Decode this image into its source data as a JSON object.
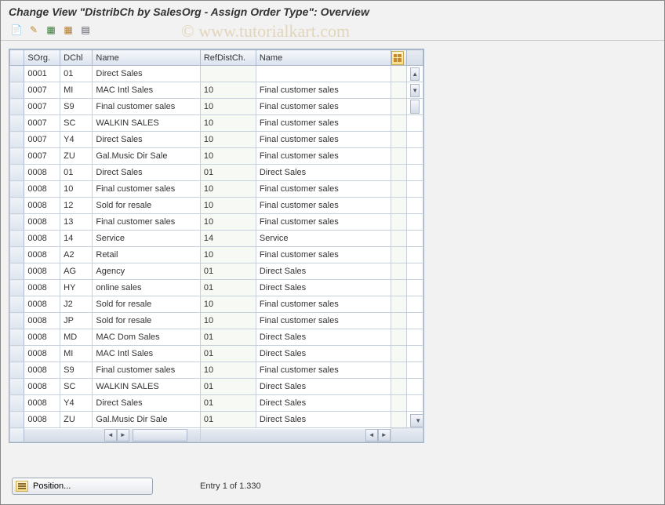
{
  "page": {
    "title": "Change View \"DistribCh by SalesOrg - Assign Order Type\": Overview",
    "watermark": "© www.tutorialkart.com"
  },
  "toolbar": {
    "items": [
      {
        "name": "other-view-icon",
        "glyph": "📄",
        "color": "#666"
      },
      {
        "name": "change-icon",
        "glyph": "✎",
        "color": "#c08a2a"
      },
      {
        "name": "new-entries-icon",
        "glyph": "▦",
        "color": "#3a7a3a"
      },
      {
        "name": "copy-icon",
        "glyph": "▦",
        "color": "#b07a2a"
      },
      {
        "name": "delete-icon",
        "glyph": "▤",
        "color": "#556"
      }
    ]
  },
  "table": {
    "columns": [
      "SOrg.",
      "DChl",
      "Name",
      "RefDistCh.",
      "Name"
    ],
    "rows": [
      {
        "sorg": "0001",
        "dchl": "01",
        "name1": "Direct Sales",
        "ref": "",
        "name2": ""
      },
      {
        "sorg": "0007",
        "dchl": "MI",
        "name1": "MAC Intl Sales",
        "ref": "10",
        "name2": "Final customer sales"
      },
      {
        "sorg": "0007",
        "dchl": "S9",
        "name1": "Final customer sales",
        "ref": "10",
        "name2": "Final customer sales"
      },
      {
        "sorg": "0007",
        "dchl": "SC",
        "name1": "WALKIN SALES",
        "ref": "10",
        "name2": "Final customer sales"
      },
      {
        "sorg": "0007",
        "dchl": "Y4",
        "name1": "Direct Sales",
        "ref": "10",
        "name2": "Final customer sales"
      },
      {
        "sorg": "0007",
        "dchl": "ZU",
        "name1": "Gal.Music Dir Sale",
        "ref": "10",
        "name2": "Final customer sales"
      },
      {
        "sorg": "0008",
        "dchl": "01",
        "name1": "Direct Sales",
        "ref": "01",
        "name2": "Direct Sales"
      },
      {
        "sorg": "0008",
        "dchl": "10",
        "name1": "Final customer sales",
        "ref": "10",
        "name2": "Final customer sales"
      },
      {
        "sorg": "0008",
        "dchl": "12",
        "name1": "Sold for resale",
        "ref": "10",
        "name2": "Final customer sales"
      },
      {
        "sorg": "0008",
        "dchl": "13",
        "name1": "Final customer sales",
        "ref": "10",
        "name2": "Final customer sales"
      },
      {
        "sorg": "0008",
        "dchl": "14",
        "name1": "Service",
        "ref": "14",
        "name2": "Service"
      },
      {
        "sorg": "0008",
        "dchl": "A2",
        "name1": "Retail",
        "ref": "10",
        "name2": "Final customer sales"
      },
      {
        "sorg": "0008",
        "dchl": "AG",
        "name1": "Agency",
        "ref": "01",
        "name2": "Direct Sales"
      },
      {
        "sorg": "0008",
        "dchl": "HY",
        "name1": "online sales",
        "ref": "01",
        "name2": "Direct Sales"
      },
      {
        "sorg": "0008",
        "dchl": "J2",
        "name1": "Sold for resale",
        "ref": "10",
        "name2": "Final customer sales"
      },
      {
        "sorg": "0008",
        "dchl": "JP",
        "name1": "Sold for resale",
        "ref": "10",
        "name2": "Final customer sales"
      },
      {
        "sorg": "0008",
        "dchl": "MD",
        "name1": "MAC Dom Sales",
        "ref": "01",
        "name2": "Direct Sales"
      },
      {
        "sorg": "0008",
        "dchl": "MI",
        "name1": "MAC Intl Sales",
        "ref": "01",
        "name2": "Direct Sales"
      },
      {
        "sorg": "0008",
        "dchl": "S9",
        "name1": "Final customer sales",
        "ref": "10",
        "name2": "Final customer sales"
      },
      {
        "sorg": "0008",
        "dchl": "SC",
        "name1": "WALKIN SALES",
        "ref": "01",
        "name2": "Direct Sales"
      },
      {
        "sorg": "0008",
        "dchl": "Y4",
        "name1": "Direct Sales",
        "ref": "01",
        "name2": "Direct Sales"
      },
      {
        "sorg": "0008",
        "dchl": "ZU",
        "name1": "Gal.Music Dir Sale",
        "ref": "01",
        "name2": "Direct Sales"
      }
    ]
  },
  "footer": {
    "position_label": "Position...",
    "entry_label": "Entry 1 of 1.330"
  },
  "colors": {
    "header_bg_top": "#f5f7fb",
    "header_bg_bot": "#dbe3ef",
    "border": "#b0bccd",
    "editable_bg": "#f7faf4",
    "body_bg": "#f2f2f2"
  }
}
